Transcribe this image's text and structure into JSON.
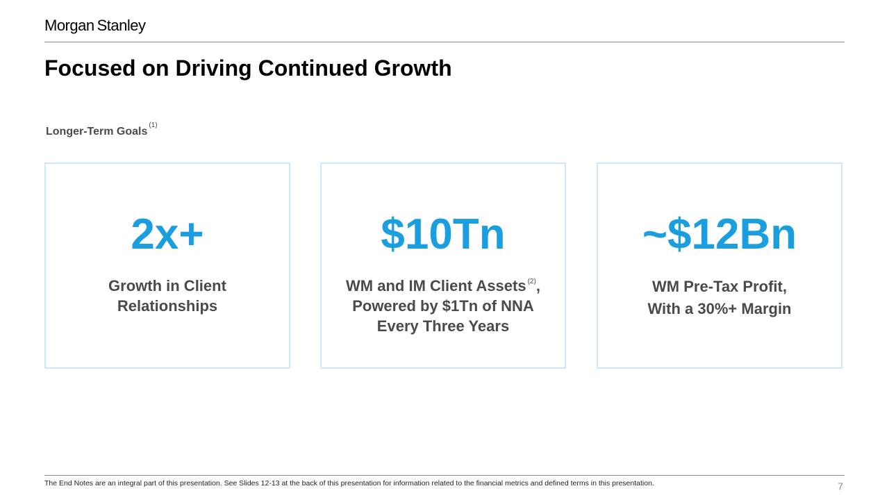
{
  "header": {
    "brand_word_1": "Morgan",
    "brand_word_2": "Stanley",
    "title": "Focused on Driving Continued Growth"
  },
  "section": {
    "label": "Longer-Term Goals",
    "footnote_ref": "(1)"
  },
  "cards": [
    {
      "metric": "2x+",
      "lines": [
        "Growth in Client",
        "Relationships"
      ]
    },
    {
      "metric": "$10Tn",
      "line1_text": "WM and IM Client Assets",
      "line1_ref": "(2)",
      "line1_suffix": ",",
      "lines_rest": [
        "Powered by $1Tn of NNA",
        "Every Three Years"
      ]
    },
    {
      "metric": "~$12Bn",
      "lines": [
        "WM Pre-Tax Profit,",
        "With a 30%+ Margin"
      ]
    }
  ],
  "footer": {
    "note": "The End Notes are an integral part of this presentation. See Slides 12-13 at the back of this presentation for information related to the financial metrics and defined terms in this presentation.",
    "page_number": "7"
  },
  "colors": {
    "accent_blue": "#1a9ee0",
    "card_border": "#cfe7f8",
    "body_text_gray": "#4a4a4a"
  }
}
